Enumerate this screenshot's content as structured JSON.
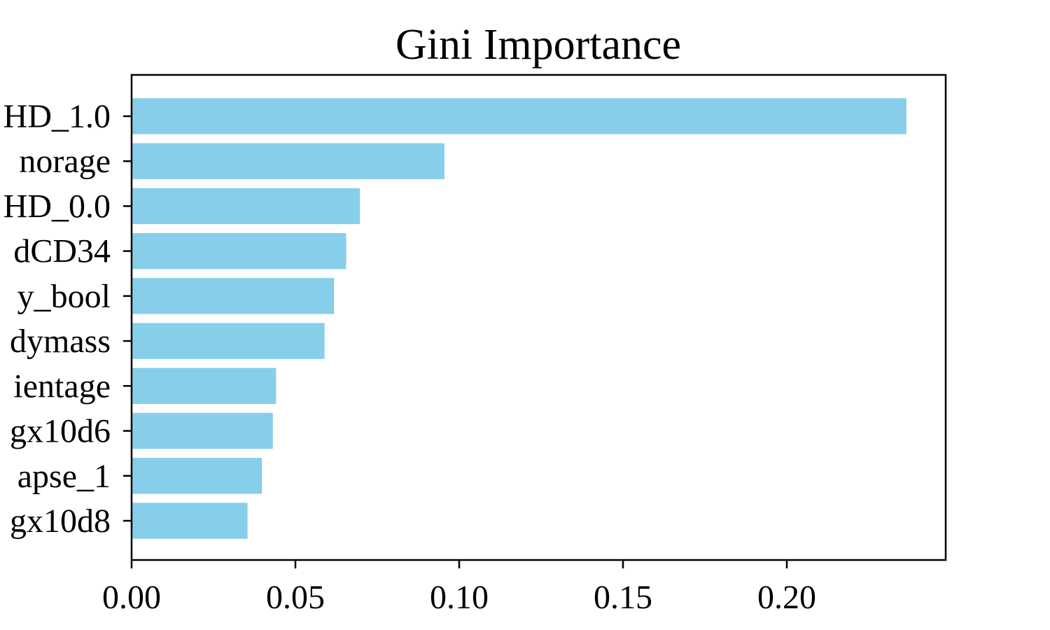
{
  "chart_data": {
    "type": "bar",
    "orientation": "horizontal",
    "title": "Gini Importance",
    "xlabel": "",
    "ylabel": "",
    "categories": [
      "HD_1.0",
      "norage",
      "HD_0.0",
      "dCD34",
      "y_bool",
      "dymass",
      "ientage",
      "gx10d6",
      "apse_1",
      "gx10d8"
    ],
    "values": [
      0.2365,
      0.0955,
      0.0697,
      0.0655,
      0.0618,
      0.0589,
      0.0441,
      0.0431,
      0.0398,
      0.0354
    ],
    "xlim": [
      0,
      0.2485
    ],
    "xticks": [
      0.0,
      0.05,
      0.1,
      0.15,
      0.2
    ],
    "xtick_labels": [
      "0.00",
      "0.05",
      "0.10",
      "0.15",
      "0.20"
    ],
    "grid": false,
    "legend": "none",
    "bar_color": "#87CEEB"
  }
}
